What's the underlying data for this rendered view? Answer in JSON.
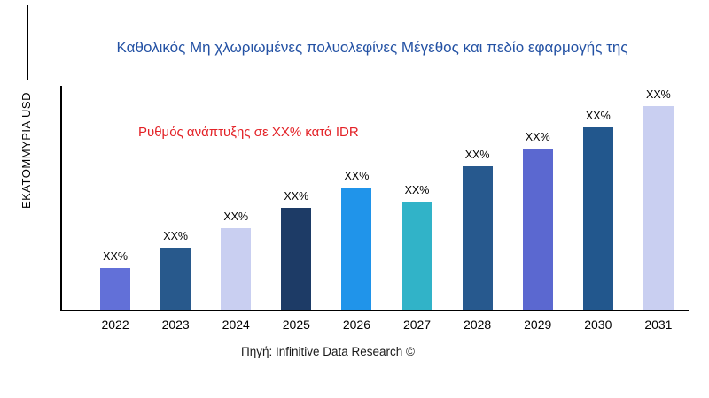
{
  "chart_data": {
    "type": "bar",
    "title": "Καθολικός Μη χλωριωμένες πολυολεφίνες Μέγεθος και πεδίο εφαρμογής της",
    "ylabel": "ΕΚΑΤΟΜΜΥΡΙΑ USD",
    "xlabel": "",
    "annotation": "Ρυθμός ανάπτυξης σε XX% κατά IDR",
    "source_label": "Πηγή: Infinitive Data Research ©",
    "categories": [
      "2022",
      "2023",
      "2024",
      "2025",
      "2026",
      "2027",
      "2028",
      "2029",
      "2030",
      "2031"
    ],
    "values": [
      47,
      70,
      92,
      115,
      138,
      122,
      162,
      182,
      206,
      230
    ],
    "values_note": "actual values masked as XX% in the source image; numbers are relative bar heights",
    "ylim": [
      0,
      253
    ],
    "bar_value_labels": [
      "XX%",
      "XX%",
      "XX%",
      "XX%",
      "XX%",
      "XX%",
      "XX%",
      "XX%",
      "XX%",
      "XX%"
    ],
    "bar_colors": [
      "#6270d8",
      "#28598c",
      "#c9cff1",
      "#1d3b66",
      "#2094ea",
      "#31b3c8",
      "#27598e",
      "#5b68d0",
      "#22578d",
      "#c9cff1"
    ],
    "colors": {
      "title": "#2452a4",
      "annotation": "#e32227",
      "axis": "#000000",
      "background": "#ffffff"
    },
    "grid": false,
    "legend": "none"
  }
}
